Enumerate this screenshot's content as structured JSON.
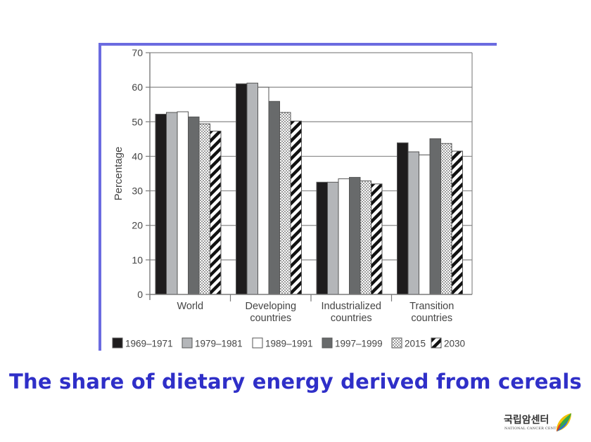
{
  "chart_data": {
    "type": "bar",
    "title": "The share of dietary energy derived from cereals",
    "xlabel": "",
    "ylabel": "Percentage",
    "ylim": [
      0,
      70
    ],
    "yticks": [
      0,
      10,
      20,
      30,
      40,
      50,
      60,
      70
    ],
    "grid": true,
    "legend_position": "bottom",
    "categories": [
      [
        "World"
      ],
      [
        "Developing",
        "countries"
      ],
      [
        "Industrialized",
        "countries"
      ],
      [
        "Transition",
        "countries"
      ]
    ],
    "series": [
      {
        "name": "1969–1971",
        "pattern": "solid",
        "color": "#1e1c1d",
        "values": [
          52.2,
          61.0,
          32.5,
          43.9
        ]
      },
      {
        "name": "1979–1981",
        "pattern": "solid",
        "color": "#b4b6b9",
        "values": [
          52.7,
          61.2,
          32.5,
          41.3
        ]
      },
      {
        "name": "1989–1991",
        "pattern": "solid",
        "color": "#ffffff",
        "values": [
          52.9,
          60.0,
          33.5,
          40.4
        ]
      },
      {
        "name": "1997–1999",
        "pattern": "solid",
        "color": "#686a6b",
        "values": [
          51.4,
          55.9,
          33.9,
          45.1
        ]
      },
      {
        "name": "2015",
        "pattern": "dots",
        "color": "#ffffff",
        "values": [
          49.4,
          52.7,
          32.9,
          43.7
        ]
      },
      {
        "name": "2030",
        "pattern": "hatch",
        "color": "#ffffff",
        "values": [
          47.3,
          50.2,
          32.0,
          41.5
        ]
      }
    ]
  },
  "caption": "The share of dietary energy derived from cereals",
  "logo": {
    "korean_name": "국립암센터",
    "english_name": "NATIONAL CANCER CENTER",
    "icon": "leaf-logo-icon"
  },
  "colors": {
    "frame": "#6b6be0",
    "caption": "#2f2fc8",
    "axis": "#7a7a7a"
  }
}
